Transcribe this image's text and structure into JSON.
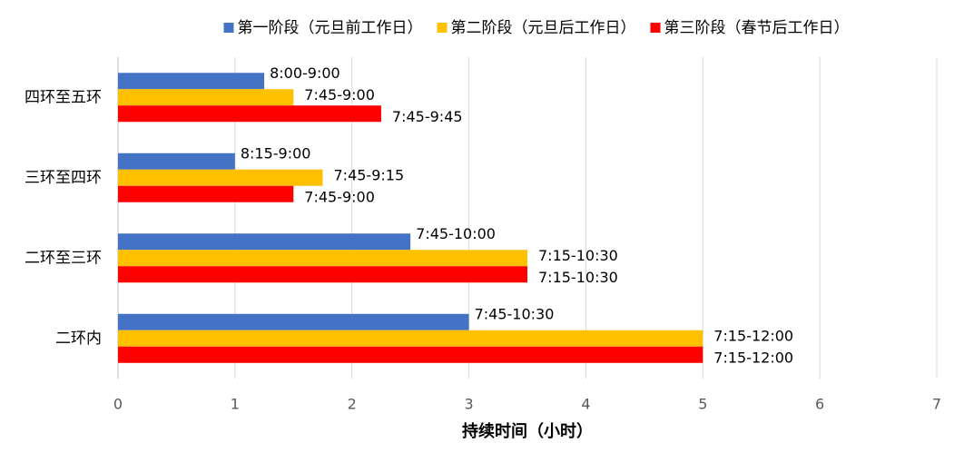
{
  "chart_data": {
    "type": "hbar",
    "x_label": "持续时间（小时）",
    "categories": [
      "四环至五环",
      "三环至四环",
      "二环至三环",
      "二环内"
    ],
    "series": [
      {
        "name": "第一阶段（元旦前工作日）",
        "color": "#4472c4",
        "values": [
          1.25,
          1,
          2.5,
          3
        ],
        "value_labels": [
          "8:00-9:00",
          "8:15-9:00",
          "7:45-10:00",
          "7:45-10:30"
        ]
      },
      {
        "name": "第二阶段（元旦后工作日）",
        "color": "#ffc000",
        "values": [
          1.5,
          1.75,
          3.5,
          5
        ],
        "value_labels": [
          "7:45-9:00",
          "7:45-9:15",
          "7:15-10:30",
          "7:15-12:00"
        ]
      },
      {
        "name": "第三阶段（春节后工作日）",
        "color": "#ff0000",
        "values": [
          2.25,
          1.5,
          3.5,
          5
        ],
        "value_labels": [
          "7:45-9:45",
          "7:45-9:00",
          "7:15-10:30",
          "7:15-12:00"
        ]
      }
    ],
    "xlim": [
      0,
      7
    ],
    "xticks": [
      0,
      1,
      2,
      3,
      4,
      5,
      6,
      7
    ],
    "grid": true,
    "legend": "top"
  }
}
